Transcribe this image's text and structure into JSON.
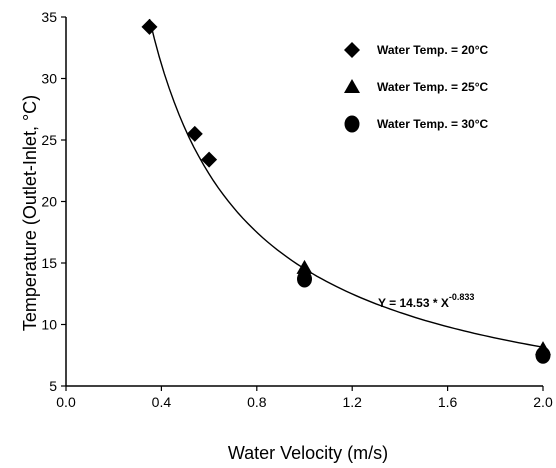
{
  "chart_data": {
    "type": "scatter",
    "xlabel": "Water Velocity (m/s)",
    "ylabel": "Temperature (Outlet-Inlet, °C)",
    "xlim": [
      0.0,
      2.0
    ],
    "ylim": [
      5,
      35
    ],
    "x_ticks": [
      "0.0",
      "0.4",
      "0.8",
      "1.2",
      "1.6",
      "2.0"
    ],
    "y_ticks": [
      "5",
      "10",
      "15",
      "20",
      "25",
      "30",
      "35"
    ],
    "grid": false,
    "legend_position": "top-right",
    "series": [
      {
        "name": "Water Temp. = 20°C",
        "marker": "diamond",
        "x": [
          0.35,
          0.54,
          0.6
        ],
        "y": [
          34.2,
          25.5,
          23.4
        ]
      },
      {
        "name": "Water Temp. = 25°C",
        "marker": "triangle",
        "x": [
          1.0,
          2.0
        ],
        "y": [
          14.6,
          8.0
        ]
      },
      {
        "name": "Water Temp. = 30°C",
        "marker": "circle",
        "x": [
          1.0,
          2.0
        ],
        "y": [
          13.7,
          7.5
        ]
      }
    ],
    "fit": {
      "coefficient": 14.53,
      "exponent": -0.833,
      "x_range": [
        0.35,
        2.0
      ],
      "label_prefix": "Y = 14.53 * X",
      "label_exponent": "-0.833"
    },
    "colors": {
      "marker": "#000000",
      "axis": "#000000"
    }
  }
}
